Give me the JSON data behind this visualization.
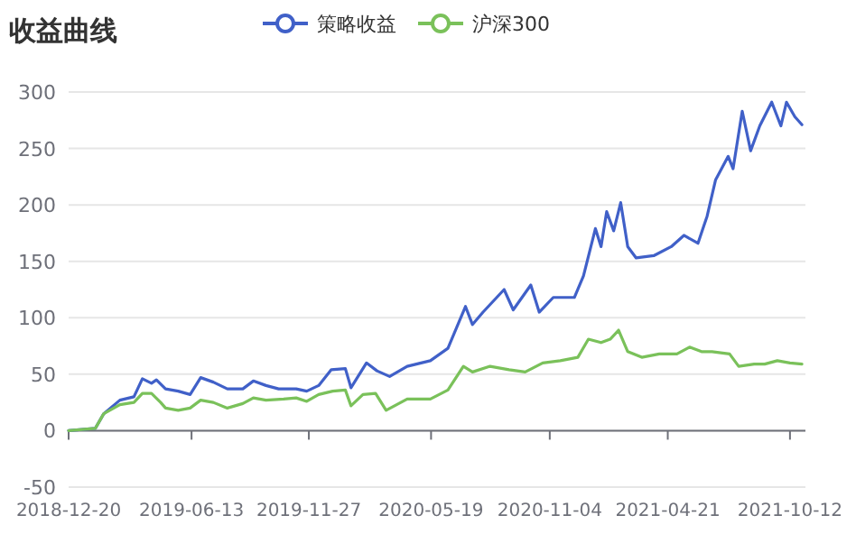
{
  "chart_data": {
    "type": "line",
    "title": "收益曲线",
    "legend": "top",
    "grid": "y",
    "line_style": "solid",
    "xlim": [
      "2018-12-20",
      "2021-11-03"
    ],
    "xticks": [
      "2018-12-20",
      "2019-06-13",
      "2019-11-27",
      "2020-05-19",
      "2020-11-04",
      "2021-04-21",
      "2021-10-12"
    ],
    "ylim": [
      -50,
      300
    ],
    "yticks": [
      -50,
      0,
      50,
      100,
      150,
      200,
      250,
      300
    ],
    "series": [
      {
        "name": "策略收益",
        "color": "#4060c8",
        "x": [
          "2018-12-20",
          "2019-01-27",
          "2019-02-08",
          "2019-03-03",
          "2019-03-23",
          "2019-04-04",
          "2019-04-17",
          "2019-04-24",
          "2019-05-07",
          "2019-05-25",
          "2019-06-11",
          "2019-06-26",
          "2019-07-14",
          "2019-08-03",
          "2019-08-25",
          "2019-09-09",
          "2019-09-27",
          "2019-10-15",
          "2019-11-09",
          "2019-11-24",
          "2019-12-11",
          "2019-12-29",
          "2020-01-18",
          "2020-01-26",
          "2020-02-17",
          "2020-03-03",
          "2020-03-21",
          "2020-04-15",
          "2020-05-18",
          "2020-06-12",
          "2020-07-07",
          "2020-07-17",
          "2020-08-01",
          "2020-08-31",
          "2020-09-13",
          "2020-10-08",
          "2020-10-20",
          "2020-11-09",
          "2020-12-09",
          "2020-12-22",
          "2021-01-08",
          "2021-01-16",
          "2021-01-24",
          "2021-02-03",
          "2021-02-13",
          "2021-02-23",
          "2021-03-07",
          "2021-04-01",
          "2021-04-26",
          "2021-05-14",
          "2021-06-03",
          "2021-06-16",
          "2021-06-28",
          "2021-07-16",
          "2021-07-23",
          "2021-08-05",
          "2021-08-17",
          "2021-08-30",
          "2021-09-16",
          "2021-09-29",
          "2021-10-07",
          "2021-10-19",
          "2021-10-29"
        ],
        "values": [
          0,
          2,
          15,
          27,
          30,
          46,
          42,
          45,
          37,
          35,
          32,
          47,
          43,
          37,
          37,
          44,
          40,
          37,
          37,
          35,
          40,
          54,
          55,
          38,
          60,
          53,
          48,
          57,
          62,
          73,
          110,
          94,
          105,
          125,
          107,
          129,
          105,
          118,
          118,
          137,
          179,
          163,
          194,
          177,
          202,
          163,
          153,
          155,
          163,
          173,
          166,
          190,
          222,
          243,
          232,
          283,
          248,
          270,
          291,
          270,
          291,
          278,
          271
        ]
      },
      {
        "name": "沪深300",
        "color": "#7ac15a",
        "x": [
          "2018-12-20",
          "2019-01-27",
          "2019-02-08",
          "2019-03-03",
          "2019-03-23",
          "2019-04-04",
          "2019-04-17",
          "2019-04-30",
          "2019-05-07",
          "2019-05-25",
          "2019-06-11",
          "2019-06-26",
          "2019-07-14",
          "2019-08-03",
          "2019-08-25",
          "2019-09-09",
          "2019-09-27",
          "2019-10-22",
          "2019-11-09",
          "2019-11-24",
          "2019-12-11",
          "2019-12-31",
          "2020-01-18",
          "2020-01-26",
          "2020-02-12",
          "2020-03-01",
          "2020-03-16",
          "2020-04-15",
          "2020-05-18",
          "2020-06-12",
          "2020-07-04",
          "2020-07-17",
          "2020-08-11",
          "2020-09-07",
          "2020-09-30",
          "2020-10-25",
          "2020-11-19",
          "2020-12-14",
          "2020-12-29",
          "2021-01-16",
          "2021-01-29",
          "2021-02-10",
          "2021-02-23",
          "2021-03-15",
          "2021-04-09",
          "2021-05-04",
          "2021-05-22",
          "2021-06-08",
          "2021-06-23",
          "2021-07-18",
          "2021-07-31",
          "2021-08-22",
          "2021-09-06",
          "2021-09-24",
          "2021-10-12",
          "2021-10-29"
        ],
        "values": [
          0,
          2,
          15,
          23,
          25,
          33,
          33,
          25,
          20,
          18,
          20,
          27,
          25,
          20,
          24,
          29,
          27,
          28,
          29,
          26,
          32,
          35,
          36,
          22,
          32,
          33,
          18,
          28,
          28,
          36,
          57,
          52,
          57,
          54,
          52,
          60,
          62,
          65,
          81,
          78,
          81,
          89,
          70,
          65,
          68,
          68,
          74,
          70,
          70,
          68,
          57,
          59,
          59,
          62,
          60,
          59
        ]
      }
    ]
  }
}
